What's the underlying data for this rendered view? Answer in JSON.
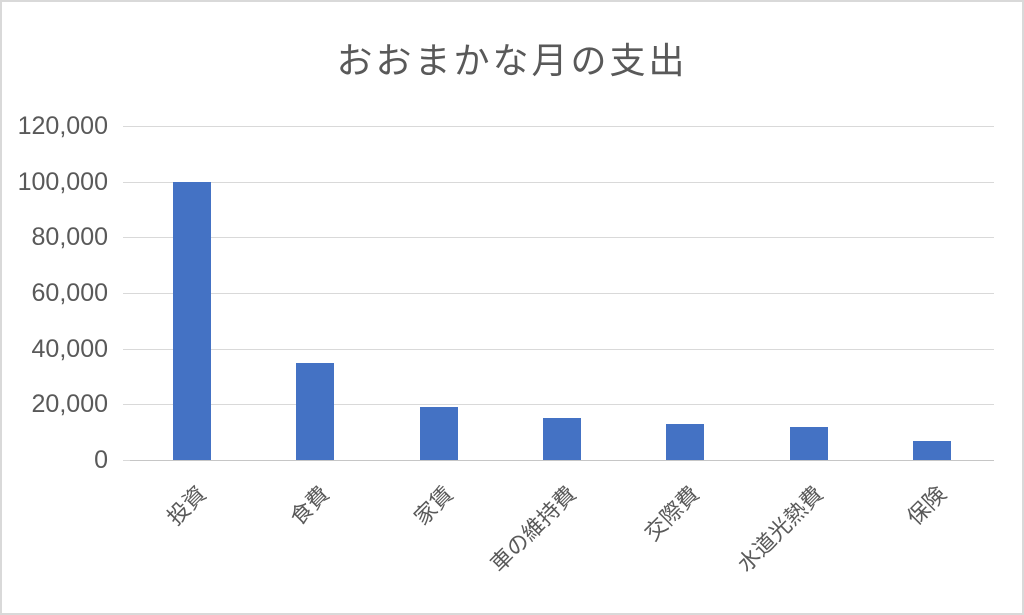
{
  "window": {
    "background_color": "#FFFFFF",
    "frame_border_color": "#D9D9D9"
  },
  "chart_data": {
    "type": "bar",
    "title": "おおまかな月の支出",
    "categories": [
      "投資",
      "食費",
      "家賃",
      "車の維持費",
      "交際費",
      "水道光熱費",
      "保険"
    ],
    "values": [
      100000,
      35000,
      19000,
      15000,
      13000,
      12000,
      7000
    ],
    "xlabel": "",
    "ylabel": "",
    "ylim": [
      0,
      120000
    ],
    "y_ticks": [
      0,
      20000,
      40000,
      60000,
      80000,
      100000,
      120000
    ],
    "y_tick_labels": [
      "0",
      "20,000",
      "40,000",
      "60,000",
      "80,000",
      "100,000",
      "120,000"
    ],
    "grid": true,
    "legend": false,
    "legend_position": "none",
    "bar_color": "#4472C4",
    "gridline_color": "#D9D9D9",
    "axis_line_color": "#C6C6C6",
    "text_color": "#595959",
    "title_color": "#595959"
  }
}
